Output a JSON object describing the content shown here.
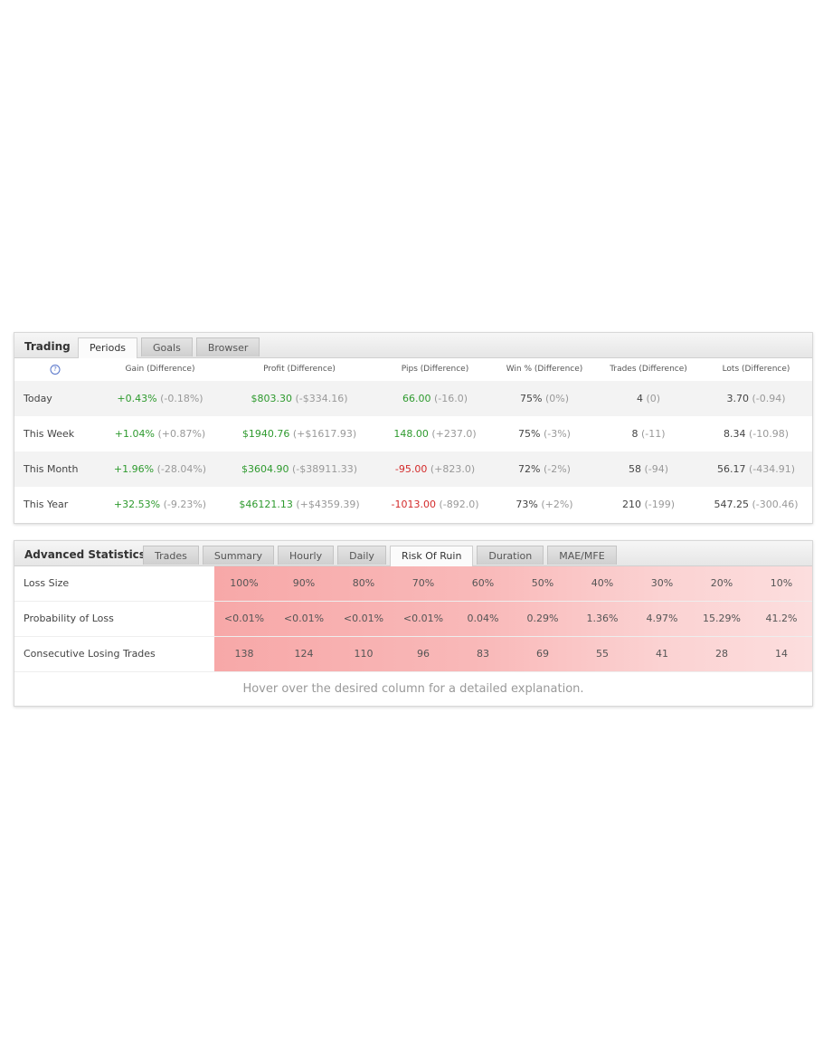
{
  "trading": {
    "title": "Trading",
    "tabs": [
      "Periods",
      "Goals",
      "Browser"
    ],
    "active_tab": "Periods",
    "help_icon": "?",
    "headers": [
      "Gain (Difference)",
      "Profit (Difference)",
      "Pips (Difference)",
      "Win % (Difference)",
      "Trades (Difference)",
      "Lots (Difference)"
    ],
    "rows": [
      {
        "label": "Today",
        "gain": "+0.43%",
        "gain_diff": "(-0.18%)",
        "profit": "$803.30",
        "profit_diff": "(-$334.16)",
        "pips": "66.00",
        "pips_diff": "(-16.0)",
        "win": "75%",
        "win_diff": "(0%)",
        "trades": "4",
        "trades_diff": "(0)",
        "lots": "3.70",
        "lots_diff": "(-0.94)"
      },
      {
        "label": "This Week",
        "gain": "+1.04%",
        "gain_diff": "(+0.87%)",
        "profit": "$1940.76",
        "profit_diff": "(+$1617.93)",
        "pips": "148.00",
        "pips_diff": "(+237.0)",
        "win": "75%",
        "win_diff": "(-3%)",
        "trades": "8",
        "trades_diff": "(-11)",
        "lots": "8.34",
        "lots_diff": "(-10.98)"
      },
      {
        "label": "This Month",
        "gain": "+1.96%",
        "gain_diff": "(-28.04%)",
        "profit": "$3604.90",
        "profit_diff": "(-$38911.33)",
        "pips": "-95.00",
        "pips_diff": "(+823.0)",
        "win": "72%",
        "win_diff": "(-2%)",
        "trades": "58",
        "trades_diff": "(-94)",
        "lots": "56.17",
        "lots_diff": "(-434.91)"
      },
      {
        "label": "This Year",
        "gain": "+32.53%",
        "gain_diff": "(-9.23%)",
        "profit": "$46121.13",
        "profit_diff": "(+$4359.39)",
        "pips": "-1013.00",
        "pips_diff": "(-892.0)",
        "win": "73%",
        "win_diff": "(+2%)",
        "trades": "210",
        "trades_diff": "(-199)",
        "lots": "547.25",
        "lots_diff": "(-300.46)"
      }
    ]
  },
  "advanced": {
    "title": "Advanced Statistics",
    "tabs": [
      "Trades",
      "Summary",
      "Hourly",
      "Daily",
      "Risk Of Ruin",
      "Duration",
      "MAE/MFE"
    ],
    "active_tab": "Risk Of Ruin",
    "rows": [
      {
        "label": "Loss Size",
        "values": [
          "100%",
          "90%",
          "80%",
          "70%",
          "60%",
          "50%",
          "40%",
          "30%",
          "20%",
          "10%"
        ]
      },
      {
        "label": "Probability of Loss",
        "values": [
          "<0.01%",
          "<0.01%",
          "<0.01%",
          "<0.01%",
          "0.04%",
          "0.29%",
          "1.36%",
          "4.97%",
          "15.29%",
          "41.2%"
        ]
      },
      {
        "label": "Consecutive Losing Trades",
        "values": [
          "138",
          "124",
          "110",
          "96",
          "83",
          "69",
          "55",
          "41",
          "28",
          "14"
        ]
      }
    ],
    "hover_note": "Hover over the desired column for a detailed explanation."
  },
  "colors": {
    "positive": "#2e9a2e",
    "negative": "#d32a2a",
    "heat_high": "#f7a8a8",
    "heat_low": "#fcdede"
  }
}
